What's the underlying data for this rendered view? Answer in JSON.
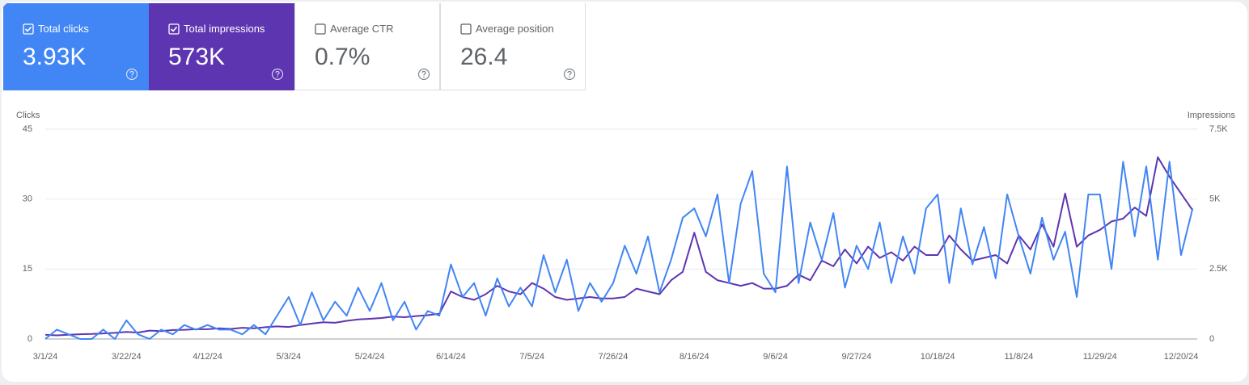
{
  "metrics": [
    {
      "label": "Total clicks",
      "value": "3.93K",
      "checked": true
    },
    {
      "label": "Total impressions",
      "value": "573K",
      "checked": true
    },
    {
      "label": "Average CTR",
      "value": "0.7%",
      "checked": false
    },
    {
      "label": "Average position",
      "value": "26.4",
      "checked": false
    }
  ],
  "chart_data": {
    "type": "line",
    "y_label": "Clicks",
    "y2_label": "Impressions",
    "grid": true,
    "categories": [
      "3/1/24",
      null,
      null,
      null,
      null,
      null,
      null,
      "3/22/24",
      null,
      null,
      null,
      null,
      null,
      null,
      "4/12/24",
      null,
      null,
      null,
      null,
      null,
      null,
      "5/3/24",
      null,
      null,
      null,
      null,
      null,
      null,
      "5/24/24",
      null,
      null,
      null,
      null,
      null,
      null,
      "6/14/24",
      null,
      null,
      null,
      null,
      null,
      null,
      "7/5/24",
      null,
      null,
      null,
      null,
      null,
      null,
      "7/26/24",
      null,
      null,
      null,
      null,
      null,
      null,
      "8/16/24",
      null,
      null,
      null,
      null,
      null,
      null,
      "9/6/24",
      null,
      null,
      null,
      null,
      null,
      null,
      "9/27/24",
      null,
      null,
      null,
      null,
      null,
      null,
      "10/18/24",
      null,
      null,
      null,
      null,
      null,
      null,
      "11/8/24",
      null,
      null,
      null,
      null,
      null,
      null,
      "11/29/24",
      null,
      null,
      null,
      null,
      null,
      null,
      "12/20/24",
      null
    ],
    "ylim": [
      0,
      45
    ],
    "yticks": [
      0,
      15,
      30,
      45
    ],
    "y2lim": [
      0,
      7500
    ],
    "y2ticks": [
      0,
      {
        "value": 2500,
        "label": "2.5K"
      },
      {
        "value": 5000,
        "label": "5K"
      },
      {
        "value": 7500,
        "label": "7.5K"
      }
    ],
    "series": [
      {
        "name": "Clicks",
        "color": "#4285f4",
        "values": [
          0,
          2,
          1,
          0,
          0,
          2,
          0,
          4,
          1,
          0,
          2,
          1,
          3,
          2,
          3,
          2,
          2,
          1,
          3,
          1,
          5,
          9,
          3,
          10,
          4,
          8,
          5,
          11,
          6,
          12,
          4,
          8,
          2,
          6,
          5,
          16,
          9,
          12,
          5,
          13,
          7,
          11,
          7,
          18,
          10,
          17,
          6,
          12,
          8,
          12,
          20,
          14,
          22,
          10,
          17,
          26,
          28,
          22,
          31,
          12,
          29,
          36,
          14,
          10,
          37,
          12,
          25,
          17,
          27,
          11,
          20,
          15,
          25,
          12,
          22,
          14,
          28,
          31,
          12,
          28,
          16,
          24,
          13,
          31,
          22,
          14,
          26,
          17,
          23,
          9,
          31,
          31,
          15,
          38,
          22,
          37,
          17,
          38,
          18,
          28
        ]
      },
      {
        "name": "Impressions",
        "color": "#5e35b1",
        "axis": "y2",
        "values": [
          150,
          130,
          150,
          170,
          180,
          200,
          220,
          250,
          230,
          300,
          280,
          320,
          330,
          350,
          350,
          380,
          360,
          400,
          380,
          420,
          450,
          430,
          500,
          550,
          600,
          580,
          650,
          700,
          720,
          750,
          800,
          780,
          820,
          850,
          900,
          1700,
          1500,
          1400,
          1600,
          1900,
          1700,
          1600,
          2000,
          1800,
          1500,
          1400,
          1450,
          1500,
          1450,
          1450,
          1500,
          1800,
          1700,
          1600,
          2100,
          2400,
          3800,
          2400,
          2100,
          2000,
          1900,
          2000,
          1800,
          1800,
          1900,
          2300,
          2100,
          2800,
          2600,
          3200,
          2700,
          3300,
          2900,
          3100,
          2800,
          3300,
          3000,
          3000,
          3700,
          3200,
          2800,
          2900,
          3000,
          2700,
          3700,
          3200,
          4100,
          3300,
          5200,
          3300,
          3700,
          3900,
          4200,
          4300,
          4700,
          4400,
          6500,
          5800,
          5200,
          4600
        ]
      }
    ]
  }
}
